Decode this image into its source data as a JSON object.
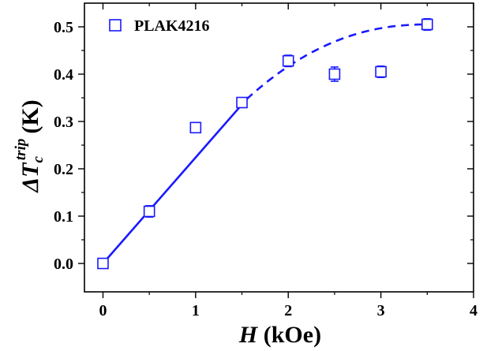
{
  "chart_data": {
    "type": "scatter",
    "xlabel_var": "H",
    "xlabel_unit": "(kOe)",
    "ylabel_delta": "Δ",
    "ylabel_var": "T",
    "ylabel_sub": "c",
    "ylabel_sup": "trip",
    "ylabel_unit": "(K)",
    "xlim": [
      -0.2,
      4.0
    ],
    "ylim": [
      -0.06,
      0.55
    ],
    "xticks": [
      "0",
      "1",
      "2",
      "3",
      "4"
    ],
    "yticks": [
      "0.0",
      "0.1",
      "0.2",
      "0.3",
      "0.4",
      "0.5"
    ],
    "marker_color": "#1a1aff",
    "fit_color": "#1a1aff",
    "series": [
      {
        "name": "PLAK4216",
        "marker": "open-square",
        "x": [
          0,
          0.5,
          1.0,
          1.5,
          2.0,
          2.5,
          3.0,
          3.5
        ],
        "y": [
          0.0,
          0.11,
          0.287,
          0.34,
          0.428,
          0.4,
          0.405,
          0.505
        ],
        "yerr": [
          0.0,
          0.012,
          0.008,
          0.01,
          0.012,
          0.015,
          0.012,
          0.012
        ]
      }
    ],
    "fit_linear": {
      "style": "solid",
      "x": [
        0,
        1.55
      ],
      "y": [
        0,
        0.347
      ]
    },
    "fit_saturating": {
      "style": "dashed",
      "x_start": 1.55,
      "x_end": 3.5,
      "y_start": 0.347,
      "y_peak": 0.505
    },
    "legend": {
      "label": "PLAK4216",
      "placement": "top-left"
    }
  }
}
